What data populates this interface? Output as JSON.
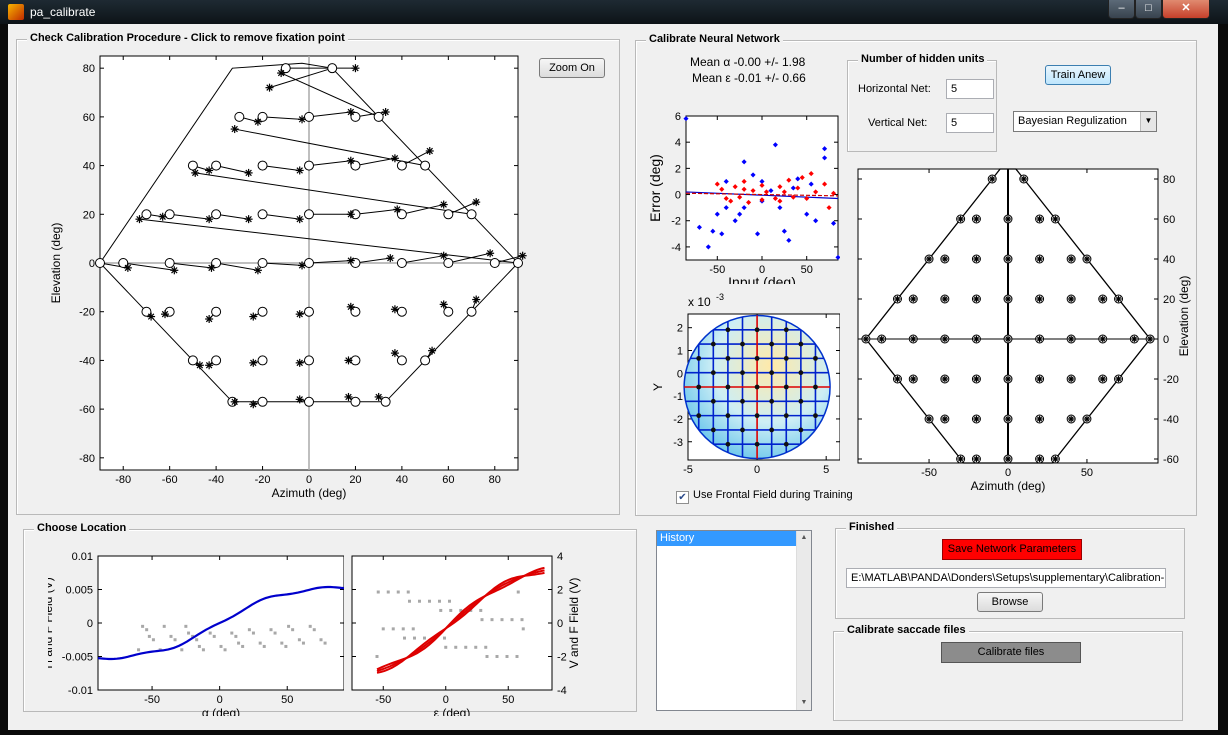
{
  "window": {
    "title": "pa_calibrate",
    "min_glyph": "‒",
    "max_glyph": "□",
    "close_glyph": "✕"
  },
  "check_panel": {
    "title": "Check Calibration Procedure - Click to remove fixation point",
    "zoom_button": "Zoom On",
    "plot": {
      "xlabel": "Azimuth (deg)",
      "ylabel": "Elevation (deg)",
      "xlim": [
        -90,
        90
      ],
      "ylim": [
        -85,
        85
      ],
      "xticks": [
        -80,
        -60,
        -40,
        -20,
        0,
        20,
        40,
        60,
        80
      ],
      "yticks": [
        -80,
        -60,
        -40,
        -20,
        0,
        20,
        40,
        60,
        80
      ],
      "polygon": [
        [
          -90,
          0
        ],
        [
          -33,
          80
        ],
        [
          -3,
          82
        ],
        [
          10,
          80
        ],
        [
          90,
          0
        ],
        [
          33,
          -57
        ],
        [
          0,
          -57
        ],
        [
          -33,
          -57
        ]
      ],
      "targets": [
        [
          -90,
          0
        ],
        [
          -80,
          0
        ],
        [
          -60,
          0
        ],
        [
          -40,
          0
        ],
        [
          -20,
          0
        ],
        [
          0,
          0
        ],
        [
          20,
          0
        ],
        [
          40,
          0
        ],
        [
          60,
          0
        ],
        [
          80,
          0
        ],
        [
          90,
          0
        ],
        [
          -70,
          20
        ],
        [
          -60,
          20
        ],
        [
          -40,
          20
        ],
        [
          -20,
          20
        ],
        [
          0,
          20
        ],
        [
          20,
          20
        ],
        [
          40,
          20
        ],
        [
          60,
          20
        ],
        [
          70,
          20
        ],
        [
          -50,
          40
        ],
        [
          -40,
          40
        ],
        [
          -20,
          40
        ],
        [
          0,
          40
        ],
        [
          20,
          40
        ],
        [
          40,
          40
        ],
        [
          50,
          40
        ],
        [
          -30,
          60
        ],
        [
          -20,
          60
        ],
        [
          0,
          60
        ],
        [
          20,
          60
        ],
        [
          30,
          60
        ],
        [
          -10,
          80
        ],
        [
          10,
          80
        ],
        [
          -70,
          -20
        ],
        [
          -60,
          -20
        ],
        [
          -40,
          -20
        ],
        [
          -20,
          -20
        ],
        [
          0,
          -20
        ],
        [
          20,
          -20
        ],
        [
          40,
          -20
        ],
        [
          60,
          -20
        ],
        [
          70,
          -20
        ],
        [
          -50,
          -40
        ],
        [
          -40,
          -40
        ],
        [
          -20,
          -40
        ],
        [
          0,
          -40
        ],
        [
          20,
          -40
        ],
        [
          40,
          -40
        ],
        [
          50,
          -40
        ],
        [
          -33,
          -57
        ],
        [
          -20,
          -57
        ],
        [
          0,
          -57
        ],
        [
          20,
          -57
        ],
        [
          33,
          -57
        ]
      ],
      "responses": [
        [
          -78,
          -2
        ],
        [
          -58,
          -3
        ],
        [
          -42,
          -2
        ],
        [
          -22,
          -3
        ],
        [
          -3,
          -1
        ],
        [
          18,
          1
        ],
        [
          35,
          2
        ],
        [
          58,
          3
        ],
        [
          78,
          4
        ],
        [
          92,
          3
        ],
        [
          -73,
          18
        ],
        [
          -63,
          19
        ],
        [
          -43,
          18
        ],
        [
          -26,
          18
        ],
        [
          -4,
          18
        ],
        [
          18,
          20
        ],
        [
          38,
          22
        ],
        [
          58,
          24
        ],
        [
          72,
          25
        ],
        [
          -49,
          37
        ],
        [
          -43,
          38
        ],
        [
          -26,
          37
        ],
        [
          -4,
          38
        ],
        [
          18,
          42
        ],
        [
          37,
          43
        ],
        [
          52,
          46
        ],
        [
          -32,
          55
        ],
        [
          -22,
          58
        ],
        [
          -3,
          59
        ],
        [
          18,
          62
        ],
        [
          33,
          62
        ],
        [
          -12,
          78
        ],
        [
          20,
          80
        ],
        [
          -17,
          72
        ],
        [
          -68,
          -22
        ],
        [
          -62,
          -21
        ],
        [
          -43,
          -23
        ],
        [
          -24,
          -22
        ],
        [
          -4,
          -21
        ],
        [
          18,
          -18
        ],
        [
          37,
          -19
        ],
        [
          58,
          -17
        ],
        [
          72,
          -15
        ],
        [
          -47,
          -42
        ],
        [
          -43,
          -42
        ],
        [
          -24,
          -41
        ],
        [
          -4,
          -41
        ],
        [
          17,
          -40
        ],
        [
          37,
          -37
        ],
        [
          53,
          -36
        ],
        [
          -32,
          -57
        ],
        [
          -24,
          -58
        ],
        [
          -4,
          -56
        ],
        [
          17,
          -55
        ],
        [
          30,
          -55
        ]
      ]
    }
  },
  "nn_panel": {
    "title": "Calibrate Neural Network",
    "mean_alpha": "Mean α -0.00 +/- 1.98",
    "mean_eps": "Mean ε -0.01 +/- 0.66",
    "hidden_units_title": "Number of hidden units",
    "horizontal_label": "Horizontal Net:",
    "horizontal_value": "5",
    "vertical_label": "Vertical Net:",
    "vertical_value": "5",
    "train_button": "Train Anew",
    "regularization": "Bayesian Regulization",
    "frontal_checkbox": "Use Frontal Field during Training",
    "frontal_checked": true,
    "error_plot": {
      "xlabel": "Input (deg)",
      "ylabel": "Error (deg)",
      "xlim": [
        -85,
        85
      ],
      "ylim": [
        -5,
        6
      ],
      "xticks": [
        -50,
        0,
        50
      ],
      "yticks": [
        -4,
        -2,
        0,
        2,
        4,
        6
      ],
      "blue": [
        [
          -85,
          5.8
        ],
        [
          -70,
          -2.5
        ],
        [
          -60,
          -4
        ],
        [
          -55,
          -2.8
        ],
        [
          -50,
          -1.5
        ],
        [
          -45,
          -3
        ],
        [
          -40,
          -1
        ],
        [
          -40,
          1
        ],
        [
          -30,
          -2
        ],
        [
          -25,
          -1.5
        ],
        [
          -20,
          2.5
        ],
        [
          -20,
          -1
        ],
        [
          -10,
          1.5
        ],
        [
          -5,
          -3
        ],
        [
          0,
          -0.5
        ],
        [
          0,
          1
        ],
        [
          10,
          0.3
        ],
        [
          15,
          3.8
        ],
        [
          20,
          -1
        ],
        [
          25,
          -2.8
        ],
        [
          30,
          -3.5
        ],
        [
          35,
          0.5
        ],
        [
          40,
          1.2
        ],
        [
          50,
          -1.5
        ],
        [
          55,
          0.8
        ],
        [
          60,
          -2
        ],
        [
          70,
          3.5
        ],
        [
          70,
          2.8
        ],
        [
          80,
          -2.2
        ],
        [
          85,
          -4.8
        ]
      ],
      "red": [
        [
          -50,
          0.8
        ],
        [
          -45,
          0.4
        ],
        [
          -40,
          -0.3
        ],
        [
          -35,
          -0.5
        ],
        [
          -30,
          0.6
        ],
        [
          -25,
          -0.2
        ],
        [
          -20,
          1
        ],
        [
          -20,
          0.4
        ],
        [
          -15,
          -0.6
        ],
        [
          -10,
          0.3
        ],
        [
          0,
          0.7
        ],
        [
          0,
          -0.4
        ],
        [
          5,
          0.2
        ],
        [
          15,
          -0.3
        ],
        [
          20,
          0.6
        ],
        [
          20,
          -0.5
        ],
        [
          25,
          0.2
        ],
        [
          30,
          1.1
        ],
        [
          35,
          -0.2
        ],
        [
          40,
          0.5
        ],
        [
          45,
          1.3
        ],
        [
          50,
          -0.3
        ],
        [
          55,
          1.6
        ],
        [
          60,
          0.2
        ],
        [
          70,
          0.8
        ],
        [
          75,
          -1
        ],
        [
          80,
          0.1
        ]
      ],
      "fit_blue": [
        [
          -85,
          0.2
        ],
        [
          85,
          -0.3
        ]
      ],
      "fit_red": [
        [
          -85,
          0.1
        ],
        [
          85,
          -0.1
        ]
      ]
    },
    "field_plot": {
      "xlabel": "",
      "ylabel": "Y",
      "exponent": "x 10",
      "exponent_power": "-3",
      "xlim": [
        -5,
        6
      ],
      "ylim": [
        -3.8,
        2.6
      ],
      "xticks": [
        -5,
        0,
        5
      ],
      "yticks": [
        -3,
        -2,
        -1,
        0,
        1,
        2
      ]
    },
    "map_plot": {
      "xlabel": "Azimuth (deg)",
      "ylabel": "Elevation (deg)",
      "xlim": [
        -95,
        95
      ],
      "ylim": [
        -62,
        85
      ],
      "xticks": [
        -50,
        0,
        50
      ],
      "yticks": [
        -60,
        -40,
        -20,
        0,
        20,
        40,
        60,
        80
      ]
    }
  },
  "choose_panel": {
    "title": "Choose Location",
    "h_plot": {
      "xlabel": "α (deg)",
      "ylabel": "H and F Field (V)",
      "xlim": [
        -90,
        92
      ],
      "ylim": [
        -0.01,
        0.01
      ],
      "xticks": [
        -50,
        0,
        50
      ],
      "yticks": [
        "-0.01",
        "-0.005",
        "0",
        "0.005",
        "0.01"
      ]
    },
    "v_plot": {
      "xlabel": "ε (deg)",
      "ylabel": "V and F Field (V)",
      "xlim": [
        -75,
        85
      ],
      "ylim": [
        -4,
        4
      ],
      "xticks": [
        -50,
        0,
        50
      ],
      "yticks": [
        -4,
        -2,
        0,
        2,
        4
      ]
    }
  },
  "history": {
    "items": [
      "History"
    ]
  },
  "finished_panel": {
    "title": "Finished",
    "save_button": "Save Network Parameters",
    "path": "E:\\MATLAB\\PANDA\\Donders\\Setups\\supplementary\\Calibration-N",
    "browse_button": "Browse"
  },
  "saccade_panel": {
    "title": "Calibrate saccade files",
    "button": "Calibrate files"
  }
}
